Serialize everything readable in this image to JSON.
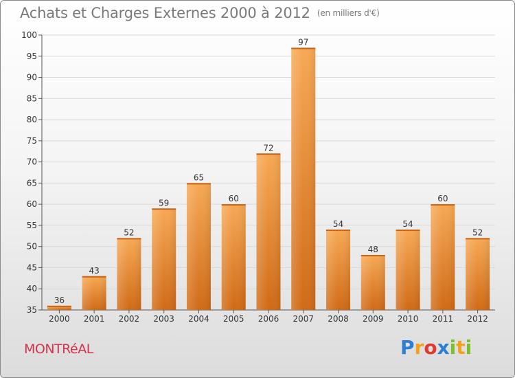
{
  "title": "Achats et Charges Externes 2000 à 2012",
  "unit": "(en milliers d'€)",
  "city": "MONTRéAL",
  "brand": {
    "letters": [
      "P",
      "r",
      "o",
      "x",
      "i",
      "t",
      "i"
    ],
    "colors": [
      "#2e7fd1",
      "#f2a21a",
      "#e03a2f",
      "#2e7fd1",
      "#7bbf2a",
      "#f2a21a",
      "#7bbf2a"
    ]
  },
  "chart_data": {
    "type": "bar",
    "title": "Achats et Charges Externes 2000 à 2012",
    "xlabel": "",
    "ylabel": "",
    "categories": [
      "2000",
      "2001",
      "2002",
      "2003",
      "2004",
      "2005",
      "2006",
      "2007",
      "2008",
      "2009",
      "2010",
      "2011",
      "2012"
    ],
    "values": [
      36,
      43,
      52,
      59,
      65,
      60,
      72,
      97,
      54,
      48,
      54,
      60,
      52
    ],
    "ylim": [
      35,
      100
    ],
    "yticks": [
      35,
      40,
      45,
      50,
      55,
      60,
      65,
      70,
      75,
      80,
      85,
      90,
      95,
      100
    ],
    "grid": true,
    "bar_color_top": "#f7a955",
    "bar_color_bottom": "#d06a16"
  }
}
